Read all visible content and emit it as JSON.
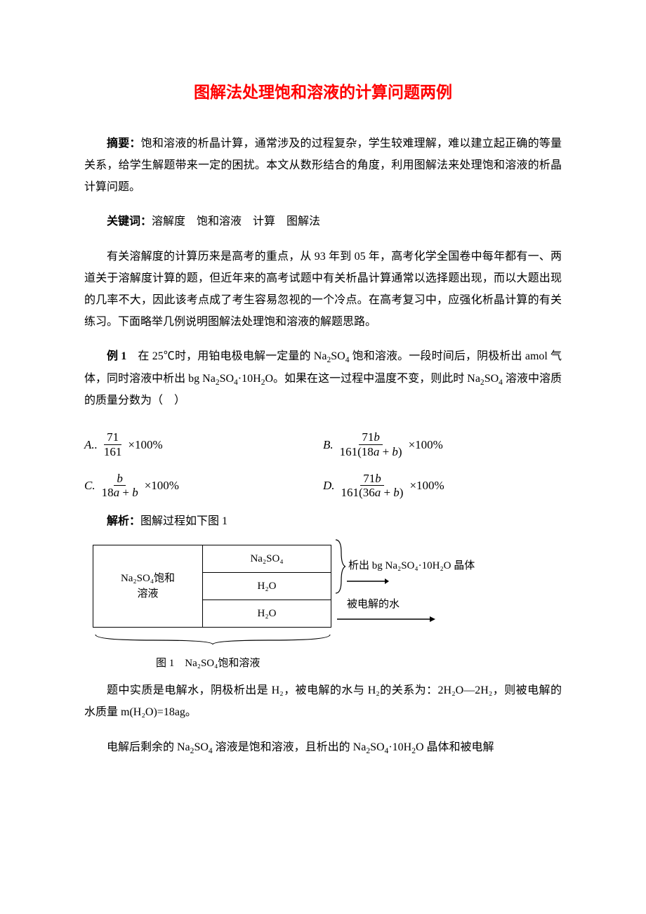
{
  "title": "图解法处理饱和溶液的计算问题两例",
  "abstract_label": "摘要：",
  "abstract_text": "饱和溶液的析晶计算，通常涉及的过程复杂，学生较难理解，难以建立起正确的等量关系，给学生解题带来一定的困扰。本文从数形结合的角度，利用图解法来处理饱和溶液的析晶计算问题。",
  "keywords_label": "关键词：",
  "keywords_text": "溶解度 饱和溶液 计算 图解法",
  "intro": "有关溶解度的计算历来是高考的重点，从 93 年到 05 年，高考化学全国卷中每年都有一、两道关于溶解度计算的题，但近年来的高考试题中有关析晶计算通常以选择题出现，而以大题出现的几率不大，因此该考点成了考生容易忽视的一个冷点。在高考复习中，应强化析晶计算的有关练习。下面略举几例说明图解法处理饱和溶液的解题思路。",
  "example1_label": "例 1",
  "example1_text_1": " 在 25℃时，用铂电极电解一定量的 Na",
  "example1_text_2": "SO",
  "example1_text_3": " 饱和溶液。一段时间后，阴极析出 amol 气体，同时溶液中析出 bg Na",
  "example1_text_4": "SO",
  "example1_text_5": "·10H",
  "example1_text_6": "O。如果在这一过程中温度不变，则此时 Na",
  "example1_text_7": "SO",
  "example1_text_8": " 溶液中溶质的质量分数为（ ）",
  "options": {
    "A": {
      "label": "A..",
      "num": "71",
      "den": "161",
      "tail": "×100%"
    },
    "B": {
      "label": "B.",
      "num_html": "71<i>b</i>",
      "den_html": "161(18<i>a</i> + <i>b</i>)",
      "tail": "×100%"
    },
    "C": {
      "label": "C.",
      "num_html": "<i>b</i>",
      "den_html": "18<i>a</i> + <i>b</i>",
      "tail": "×100%"
    },
    "D": {
      "label": "D.",
      "num_html": "71<i>b</i>",
      "den_html": "161(36<i>a</i> + <i>b</i>)",
      "tail": "×100%"
    }
  },
  "analysis_label": "解析：",
  "analysis_text": "图解过程如下图 1",
  "diagram": {
    "left_label_line1": "Na₂SO₄饱和",
    "left_label_line2": "溶液",
    "r1": "Na₂SO₄",
    "r2": "H₂O",
    "r3": "H₂O",
    "out_top": "析出 bg Na₂SO₄·10H₂O 晶体",
    "out_bottom": "被电解的水",
    "caption": "图 1 Na₂SO₄饱和溶液"
  },
  "p_after1": "题中实质是电解水，阴极析出是 H₂，被电解的水与 H₂的关系为：2H₂O—2H₂，则被电解的水质量 m(H₂O)=18ag。",
  "p_after2_1": "电解后剩余的 Na",
  "p_after2_2": "SO",
  "p_after2_3": " 溶液是饱和溶液，且析出的 Na",
  "p_after2_4": "SO",
  "p_after2_5": "·10H",
  "p_after2_6": "O 晶体和被电解",
  "colors": {
    "title": "#ff0000",
    "text": "#000000",
    "background": "#ffffff",
    "border": "#000000"
  },
  "fonts": {
    "body_family": "SimSun",
    "title_size_pt": 17,
    "body_size_pt": 12
  }
}
